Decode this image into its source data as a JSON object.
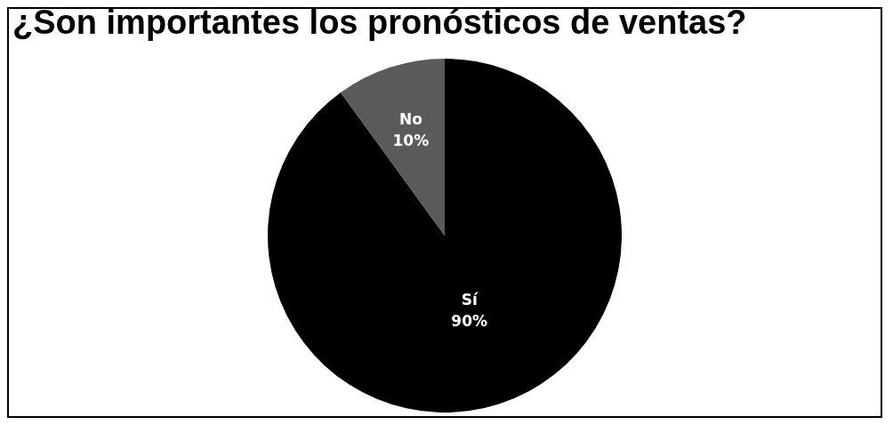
{
  "chart_data": {
    "type": "pie",
    "title": "¿Son importantes los pronósticos de ventas?",
    "categories": [
      "Sí",
      "No"
    ],
    "values": [
      90,
      10
    ],
    "colors": [
      "#000000",
      "#5a5a5a"
    ],
    "value_labels": [
      "90%",
      "10%"
    ],
    "legend": false
  }
}
